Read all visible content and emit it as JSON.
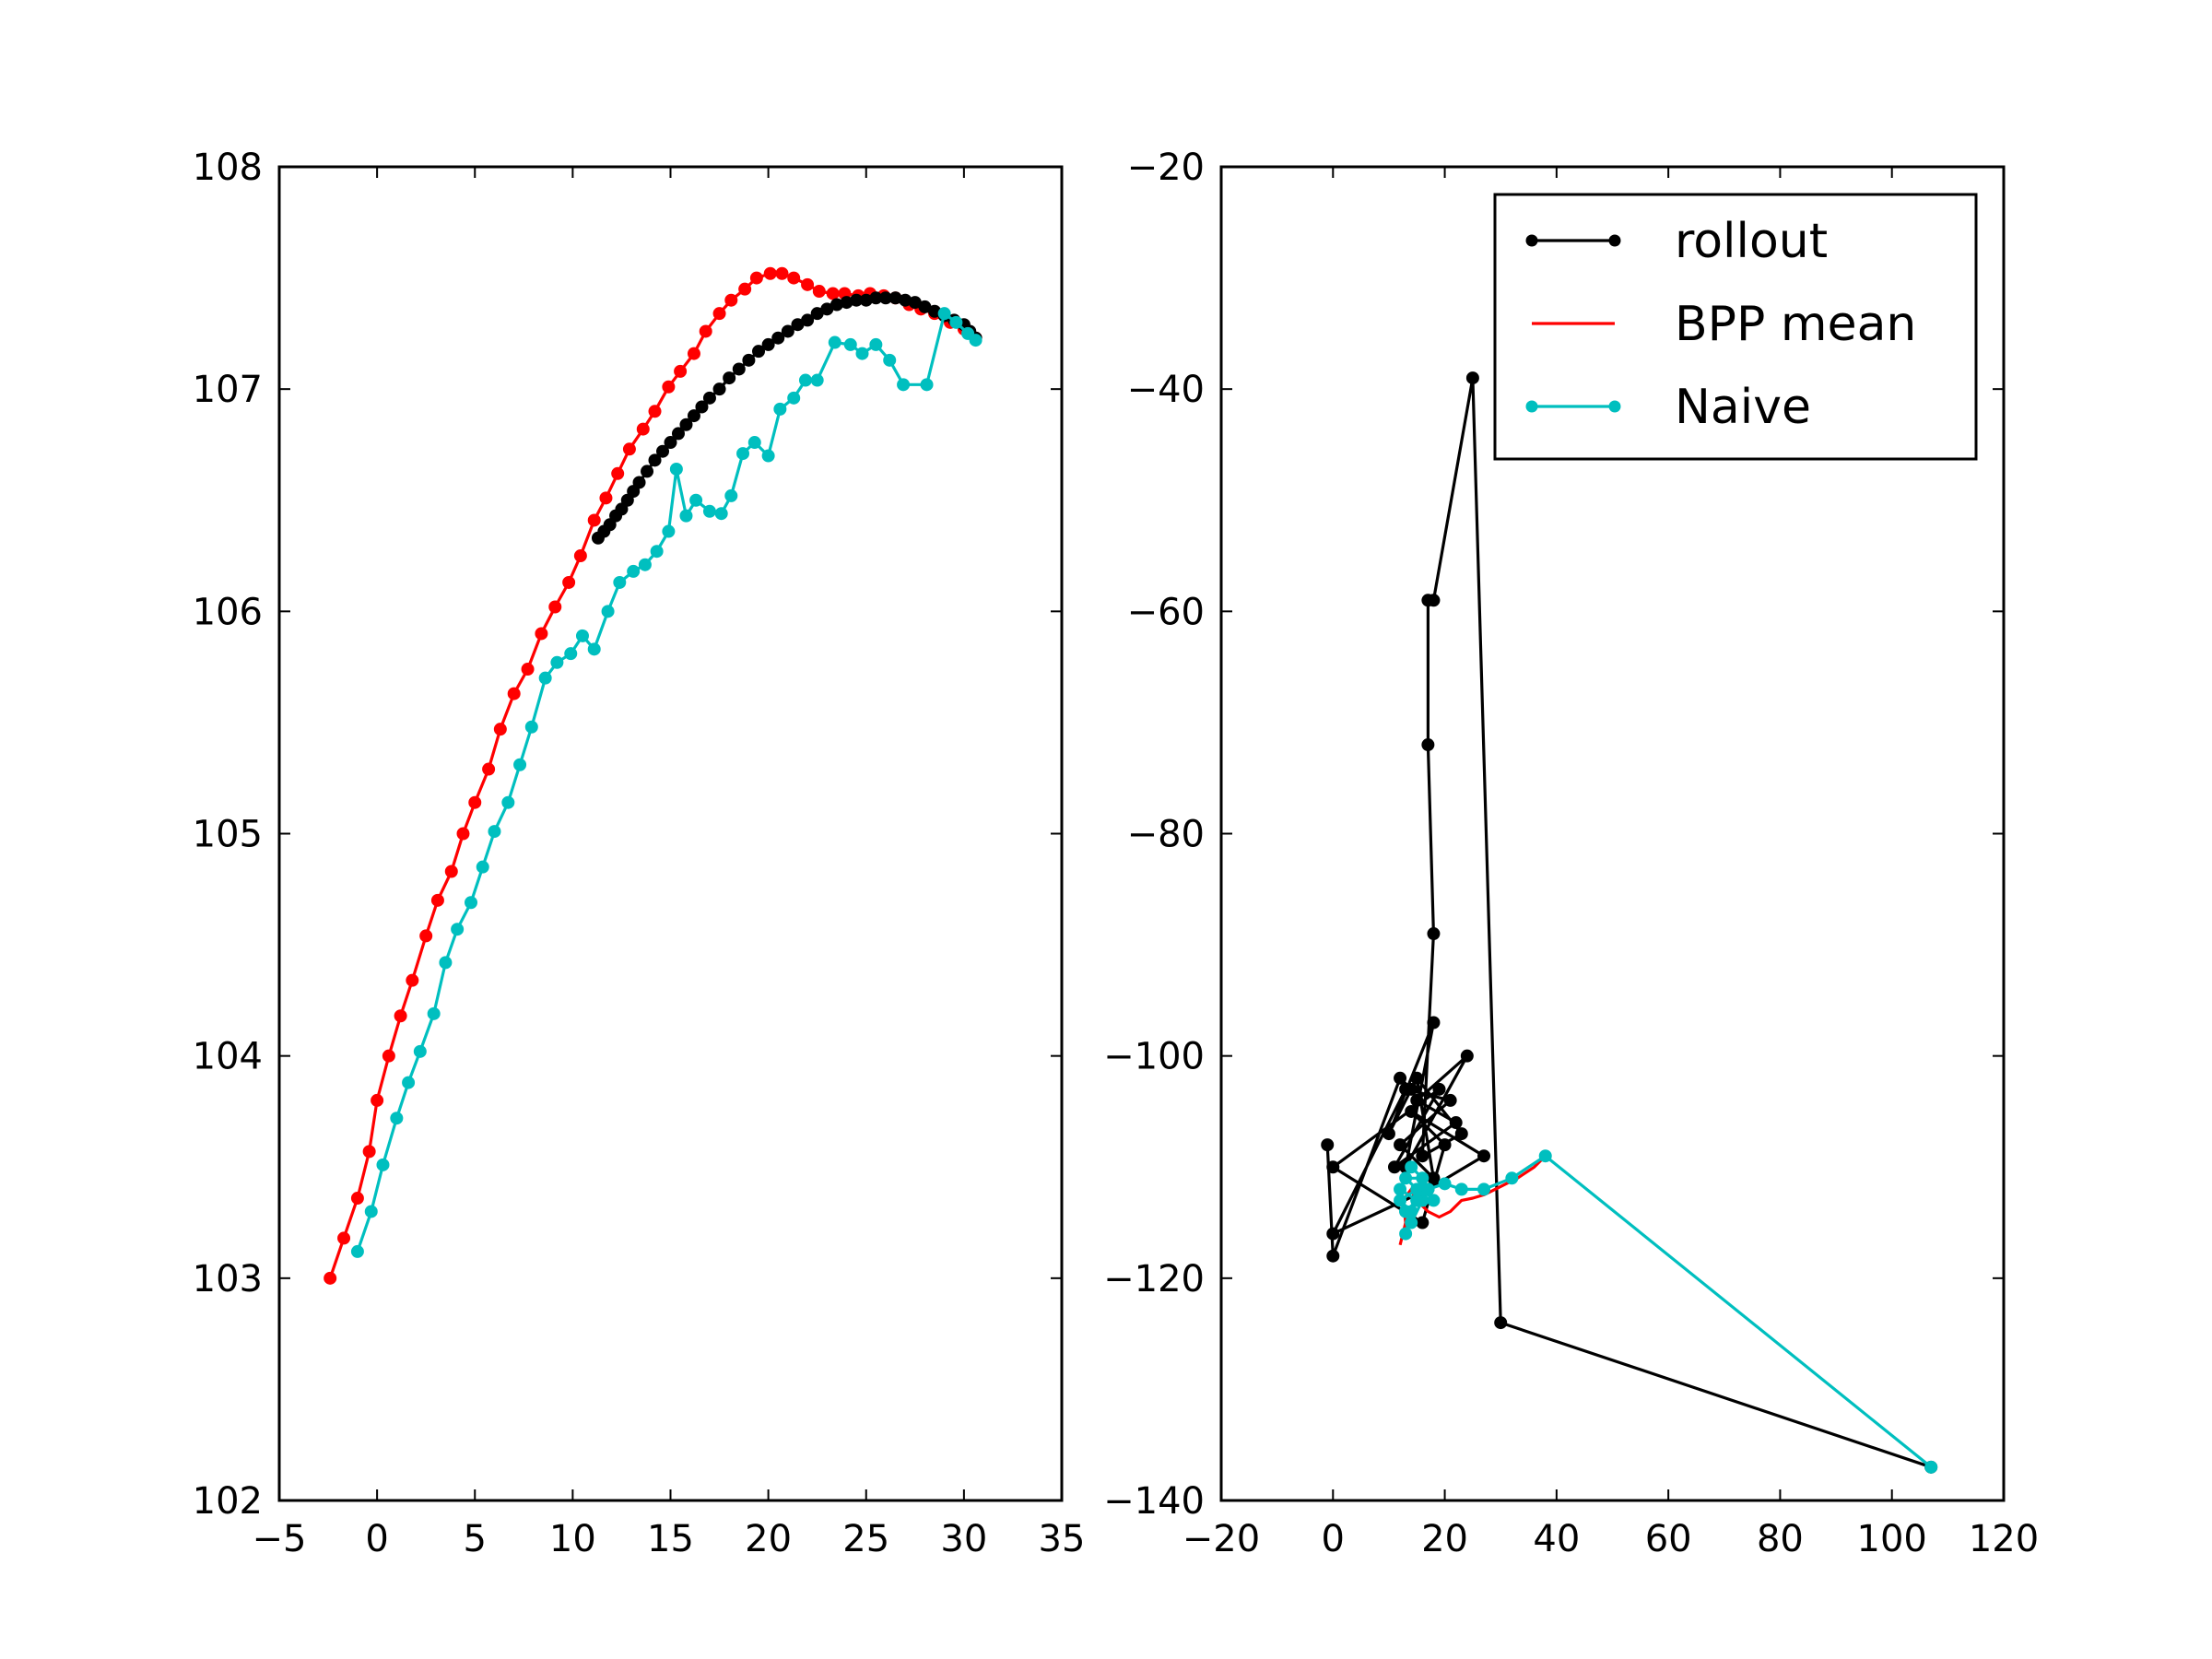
{
  "chart_data": [
    {
      "type": "line",
      "title": "",
      "xlabel": "",
      "ylabel": "",
      "xlim": [
        -5,
        35
      ],
      "ylim": [
        102,
        108
      ],
      "xticks": [
        -5,
        0,
        5,
        10,
        15,
        20,
        25,
        30,
        35
      ],
      "xtick_labels": [
        "−5",
        "0",
        "5",
        "10",
        "15",
        "20",
        "25",
        "30",
        "35"
      ],
      "yticks": [
        102,
        103,
        104,
        105,
        106,
        107,
        108
      ],
      "ytick_labels": [
        "102",
        "103",
        "104",
        "105",
        "106",
        "107",
        "108"
      ],
      "grid": false,
      "series": [
        {
          "name": "BPP mean",
          "color": "#ff0000",
          "markers": true,
          "x": [
            -2.4,
            -1.7,
            -1.0,
            -0.4,
            0.0,
            0.6,
            1.2,
            1.8,
            2.5,
            3.1,
            3.8,
            4.4,
            5.0,
            5.7,
            6.3,
            7.0,
            7.7,
            8.4,
            9.1,
            9.8,
            10.4,
            11.1,
            11.7,
            12.3,
            12.9,
            13.6,
            14.2,
            14.9,
            15.5,
            16.2,
            16.8,
            17.5,
            18.1,
            18.8,
            19.4,
            20.1,
            20.7,
            21.3,
            22.0,
            22.6,
            23.3,
            23.9,
            24.6,
            25.2,
            25.9,
            26.5,
            27.2,
            27.8,
            28.5,
            29.3,
            30.0,
            30.6
          ],
          "y": [
            103.0,
            103.18,
            103.36,
            103.57,
            103.8,
            104.0,
            104.18,
            104.34,
            104.54,
            104.7,
            104.83,
            105.0,
            105.14,
            105.29,
            105.47,
            105.63,
            105.74,
            105.9,
            106.02,
            106.13,
            106.25,
            106.41,
            106.51,
            106.62,
            106.73,
            106.82,
            106.9,
            107.01,
            107.08,
            107.16,
            107.26,
            107.34,
            107.4,
            107.45,
            107.5,
            107.52,
            107.52,
            107.5,
            107.47,
            107.44,
            107.43,
            107.43,
            107.42,
            107.43,
            107.42,
            107.41,
            107.38,
            107.36,
            107.34,
            107.3,
            107.27,
            107.23
          ]
        },
        {
          "name": "rollout",
          "color": "#000000",
          "markers": true,
          "x": [
            11.3,
            11.6,
            11.9,
            12.2,
            12.5,
            12.8,
            13.1,
            13.4,
            13.8,
            14.2,
            14.6,
            15.0,
            15.4,
            15.8,
            16.2,
            16.6,
            17.0,
            17.5,
            18.0,
            18.5,
            19.0,
            19.5,
            20.0,
            20.5,
            21.0,
            21.5,
            22.0,
            22.5,
            23.0,
            23.5,
            24.0,
            24.5,
            25.0,
            25.5,
            26.0,
            26.5,
            27.0,
            27.5,
            28.0,
            28.5,
            29.0,
            29.5,
            30.0,
            30.3,
            30.6
          ],
          "y": [
            106.33,
            106.36,
            106.39,
            106.43,
            106.46,
            106.5,
            106.54,
            106.58,
            106.63,
            106.68,
            106.72,
            106.76,
            106.8,
            106.84,
            106.88,
            106.92,
            106.96,
            107.0,
            107.05,
            107.09,
            107.13,
            107.17,
            107.2,
            107.23,
            107.26,
            107.29,
            107.31,
            107.34,
            107.36,
            107.38,
            107.39,
            107.4,
            107.4,
            107.41,
            107.41,
            107.41,
            107.4,
            107.39,
            107.37,
            107.35,
            107.33,
            107.31,
            107.29,
            107.26,
            107.23
          ]
        },
        {
          "name": "Naive",
          "color": "#00bfbf",
          "markers": true,
          "x": [
            -1.0,
            -0.3,
            0.3,
            1.0,
            1.6,
            2.2,
            2.9,
            3.5,
            4.1,
            4.8,
            5.4,
            6.0,
            6.7,
            7.3,
            7.9,
            8.6,
            9.2,
            9.9,
            10.5,
            11.1,
            11.8,
            12.4,
            13.1,
            13.7,
            14.3,
            14.9,
            15.3,
            15.8,
            16.3,
            17.0,
            17.6,
            18.1,
            18.7,
            19.3,
            20.0,
            20.6,
            21.3,
            21.9,
            22.5,
            23.4,
            24.2,
            24.8,
            25.5,
            26.2,
            26.9,
            28.1,
            29.0,
            29.6,
            30.2,
            30.6
          ],
          "y": [
            103.12,
            103.3,
            103.51,
            103.72,
            103.88,
            104.02,
            104.19,
            104.42,
            104.57,
            104.69,
            104.85,
            105.01,
            105.14,
            105.31,
            105.48,
            105.7,
            105.77,
            105.81,
            105.89,
            105.83,
            106.0,
            106.13,
            106.18,
            106.21,
            106.27,
            106.36,
            106.64,
            106.43,
            106.5,
            106.45,
            106.44,
            106.52,
            106.71,
            106.76,
            106.7,
            106.91,
            106.96,
            107.04,
            107.04,
            107.21,
            107.2,
            107.16,
            107.2,
            107.13,
            107.02,
            107.02,
            107.34,
            107.3,
            107.25,
            107.22
          ]
        }
      ]
    },
    {
      "type": "line",
      "title": "",
      "xlabel": "",
      "ylabel": "",
      "xlim": [
        -20,
        120
      ],
      "ylim": [
        -140,
        -20
      ],
      "xticks": [
        -20,
        0,
        20,
        40,
        60,
        80,
        100,
        120
      ],
      "xtick_labels": [
        "−20",
        "0",
        "20",
        "40",
        "60",
        "80",
        "100",
        "120"
      ],
      "yticks": [
        -140,
        -120,
        -100,
        -80,
        -60,
        -40,
        -20
      ],
      "ytick_labels": [
        "−140",
        "−120",
        "−100",
        "−80",
        "−60",
        "−40",
        "−20"
      ],
      "grid": false,
      "legend": {
        "placement": "upper right",
        "entries": [
          {
            "label": "rollout",
            "color": "#000000",
            "markers": true
          },
          {
            "label": "BPP mean",
            "color": "#ff0000",
            "markers": false
          },
          {
            "label": "Naive",
            "color": "#00bfbf",
            "markers": true
          }
        ]
      },
      "series": [
        {
          "name": "rollout",
          "color": "#000000",
          "markers": true,
          "x": [
            -1,
            0,
            12,
            14,
            10,
            18,
            13,
            24,
            15,
            22,
            11,
            19,
            0,
            16,
            20,
            14,
            27,
            17,
            0,
            13,
            21,
            12,
            18,
            15,
            23,
            16,
            18,
            17,
            17,
            18,
            25,
            30,
            107
          ],
          "y": [
            -108,
            -118,
            -102,
            -103,
            -107,
            -97,
            -110,
            -100,
            -104,
            -106,
            -110,
            -103,
            -110,
            -115,
            -108,
            -105,
            -109,
            -112,
            -116,
            -103,
            -104,
            -108,
            -111,
            -102,
            -107,
            -109,
            -89,
            -72,
            -59,
            -59,
            -39,
            -124,
            -137
          ]
        },
        {
          "name": "BPP mean",
          "color": "#ff0000",
          "markers": false,
          "x": [
            12,
            13,
            12.5,
            14,
            15,
            17,
            19,
            21,
            23,
            25,
            27,
            29,
            31,
            33,
            36,
            38
          ],
          "y": [
            -117,
            -115,
            -113,
            -112,
            -113,
            -114,
            -114.5,
            -114,
            -113,
            -112.8,
            -112.5,
            -112,
            -111.5,
            -111,
            -110,
            -109
          ]
        },
        {
          "name": "Naive",
          "color": "#00bfbf",
          "markers": true,
          "x": [
            13,
            14,
            12,
            15,
            13,
            16,
            14,
            12,
            15,
            13,
            16,
            17,
            14,
            13,
            15,
            16,
            18,
            17,
            20,
            23,
            27,
            32,
            38,
            107
          ],
          "y": [
            -116,
            -114,
            -113,
            -112,
            -111,
            -111,
            -110,
            -112,
            -113,
            -114,
            -113,
            -112,
            -115,
            -114,
            -113,
            -112,
            -113,
            -112,
            -111.5,
            -112,
            -112,
            -111,
            -109,
            -137
          ]
        }
      ]
    }
  ]
}
